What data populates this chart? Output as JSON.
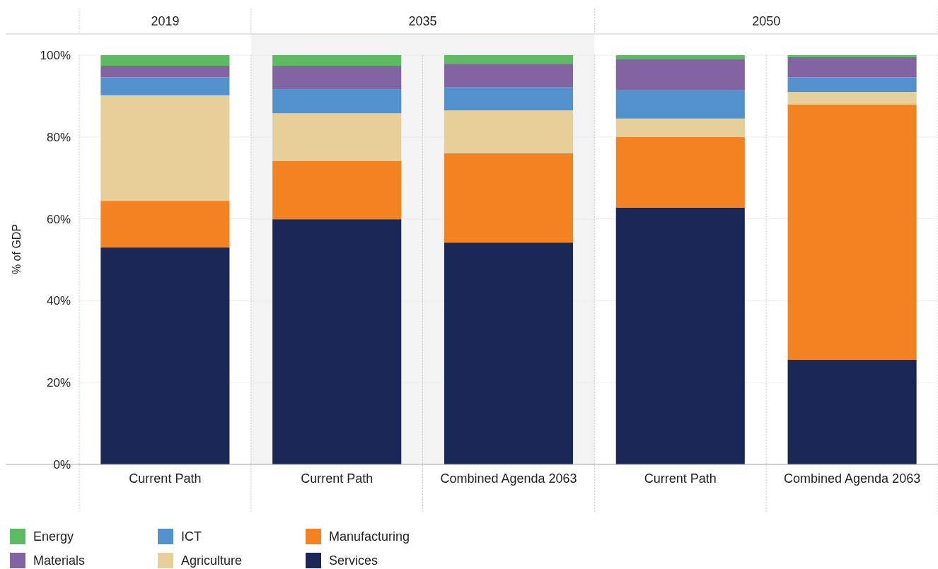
{
  "chart_data": {
    "type": "bar",
    "stacked": true,
    "ylabel": "% of GDP",
    "categories": [
      "Current Path",
      "Current Path",
      "Combined Agenda 2063",
      "Current Path",
      "Combined Agenda 2063"
    ],
    "annotations": [
      "2019",
      "2035",
      "2050"
    ],
    "series": [
      {
        "name": "Services",
        "color": "#1a2857",
        "values": [
          53.0,
          59.9,
          54.2,
          62.7,
          25.6
        ]
      },
      {
        "name": "Manufacturing",
        "color": "#f38220",
        "values": [
          11.4,
          14.2,
          21.8,
          17.3,
          62.3
        ]
      },
      {
        "name": "Agriculture",
        "color": "#e6cf98",
        "values": [
          25.8,
          11.7,
          10.5,
          4.5,
          3.1
        ]
      },
      {
        "name": "ICT",
        "color": "#5391cd",
        "values": [
          4.4,
          5.9,
          5.7,
          6.9,
          3.6
        ]
      },
      {
        "name": "Materials",
        "color": "#8264a2",
        "values": [
          2.8,
          5.7,
          5.7,
          7.7,
          4.9
        ]
      },
      {
        "name": "Energy",
        "color": "#5cba60",
        "values": [
          2.6,
          2.6,
          2.1,
          0.9,
          0.5
        ]
      }
    ],
    "ylim": [
      0,
      100
    ],
    "yticks": [
      {
        "value": 0,
        "label": "0%"
      },
      {
        "value": 20,
        "label": "20%"
      },
      {
        "value": 40,
        "label": "40%"
      },
      {
        "value": 60,
        "label": "60%"
      },
      {
        "value": 80,
        "label": "80%"
      },
      {
        "value": 100,
        "label": "100%"
      }
    ],
    "grid": "y",
    "legend": "bottom left"
  }
}
